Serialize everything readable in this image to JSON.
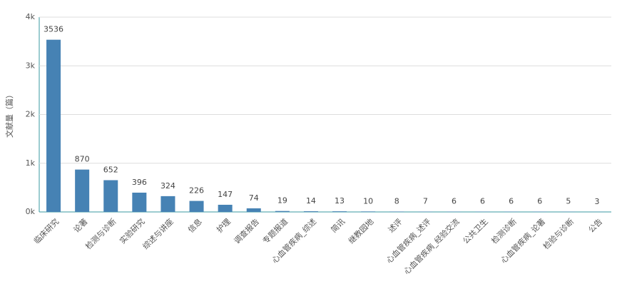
{
  "chart_data": {
    "type": "bar",
    "y_label": "文献量（篇）",
    "categories": [
      "临床研究",
      "论著",
      "检测与诊断",
      "实验研究",
      "综述与讲座",
      "信息",
      "护理",
      "调查报告",
      "专题报道",
      "心血管疾病_综述",
      "简讯",
      "继教园地",
      "述评",
      "心血管疾病_述评",
      "心血管疾病_经验交流",
      "公共卫生",
      "检测诊断",
      "心血管疾病_论著",
      "检验与诊断",
      "公告"
    ],
    "values": [
      3536,
      870,
      652,
      396,
      324,
      226,
      147,
      74,
      19,
      14,
      13,
      10,
      8,
      7,
      6,
      6,
      6,
      6,
      5,
      3
    ],
    "color": "#4682b4",
    "ylim": [
      0,
      4000
    ],
    "yticks": [
      {
        "value": 0,
        "label": "0k"
      },
      {
        "value": 1000,
        "label": "1k"
      },
      {
        "value": 2000,
        "label": "2k"
      },
      {
        "value": 3000,
        "label": "3k"
      },
      {
        "value": 4000,
        "label": "4k"
      }
    ],
    "grid": true
  }
}
